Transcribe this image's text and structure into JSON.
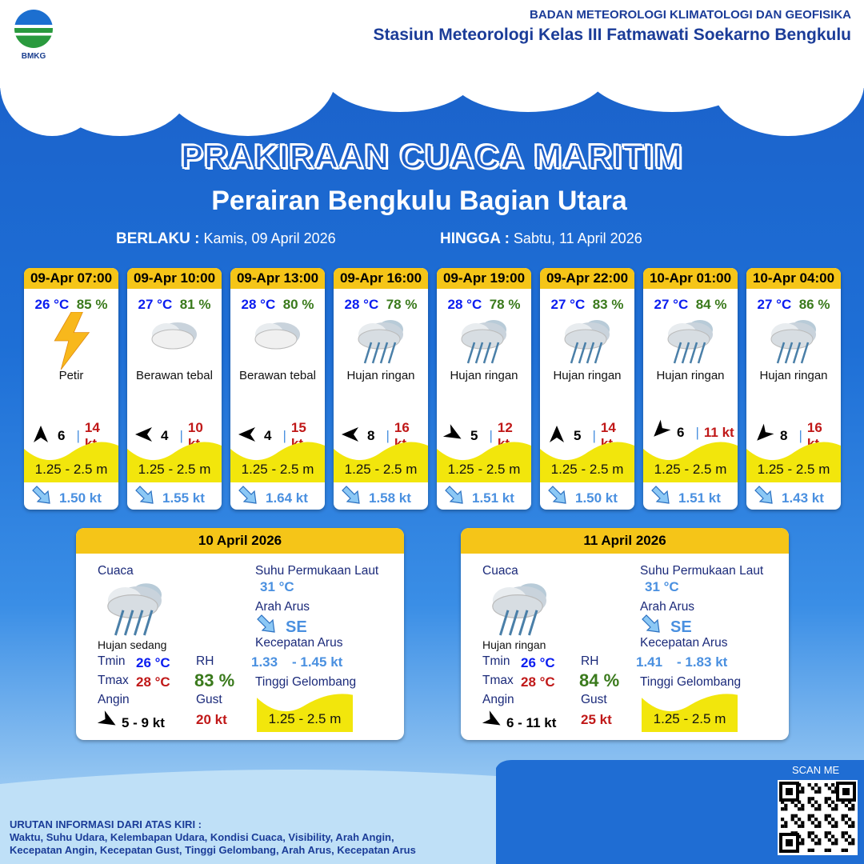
{
  "header": {
    "logo_text": "BMKG",
    "org_line1": "BADAN METEOROLOGI KLIMATOLOGI DAN GEOFISIKA",
    "org_line2": "Stasiun Meteorologi Kelas III Fatmawati Soekarno Bengkulu"
  },
  "title": "PRAKIRAAN CUACA MARITIM",
  "subtitle": "Perairan Bengkulu Bagian Utara",
  "validity": {
    "from_label": "BERLAKU :",
    "from_value": "Kamis, 09 April 2026",
    "to_label": "HINGGA :",
    "to_value": "Sabtu, 11 April 2026"
  },
  "colors": {
    "header_yellow": "#f5c518",
    "wave_yellow": "#f2e60c",
    "temp_blue": "#0a1cf0",
    "rh_green": "#3a7a1c",
    "gust_red": "#c01818",
    "current_blue": "#4a90e0"
  },
  "forecasts": [
    {
      "time": "09-Apr 07:00",
      "temp": "26 °C",
      "rh": "85 %",
      "icon": "lightning-icon",
      "condition": "Petir",
      "wind_dir_deg": 180,
      "wind_speed": "6",
      "gust": "14 kt",
      "wave": "1.25 - 2.5 m",
      "current": "1.50 kt"
    },
    {
      "time": "09-Apr 10:00",
      "temp": "27 °C",
      "rh": "81 %",
      "icon": "cloud-icon",
      "condition": "Berawan tebal",
      "wind_dir_deg": 90,
      "wind_speed": "4",
      "gust": "10 kt",
      "wave": "1.25 - 2.5 m",
      "current": "1.55 kt"
    },
    {
      "time": "09-Apr 13:00",
      "temp": "28 °C",
      "rh": "80 %",
      "icon": "cloud-icon",
      "condition": "Berawan tebal",
      "wind_dir_deg": 90,
      "wind_speed": "4",
      "gust": "15 kt",
      "wave": "1.25 - 2.5 m",
      "current": "1.64 kt"
    },
    {
      "time": "09-Apr 16:00",
      "temp": "28 °C",
      "rh": "78 %",
      "icon": "rain-cloud-icon",
      "condition": "Hujan ringan",
      "wind_dir_deg": 90,
      "wind_speed": "8",
      "gust": "16 kt",
      "wave": "1.25 - 2.5 m",
      "current": "1.58 kt"
    },
    {
      "time": "09-Apr 19:00",
      "temp": "28 °C",
      "rh": "78 %",
      "icon": "rain-cloud-icon",
      "condition": "Hujan ringan",
      "wind_dir_deg": -60,
      "wind_speed": "5",
      "gust": "12 kt",
      "wave": "1.25 - 2.5 m",
      "current": "1.51 kt"
    },
    {
      "time": "09-Apr 22:00",
      "temp": "27 °C",
      "rh": "83 %",
      "icon": "rain-cloud-icon",
      "condition": "Hujan ringan",
      "wind_dir_deg": 180,
      "wind_speed": "5",
      "gust": "14 kt",
      "wave": "1.25 - 2.5 m",
      "current": "1.50 kt"
    },
    {
      "time": "10-Apr 01:00",
      "temp": "27 °C",
      "rh": "84 %",
      "icon": "rain-cloud-icon",
      "condition": "Hujan ringan",
      "wind_dir_deg": 45,
      "wind_speed": "6",
      "gust": "11 kt",
      "wave": "1.25 - 2.5 m",
      "current": "1.51 kt"
    },
    {
      "time": "10-Apr 04:00",
      "temp": "27 °C",
      "rh": "86 %",
      "icon": "rain-cloud-icon",
      "condition": "Hujan ringan",
      "wind_dir_deg": 45,
      "wind_speed": "8",
      "gust": "16 kt",
      "wave": "1.25 - 2.5 m",
      "current": "1.43 kt"
    }
  ],
  "labels": {
    "weather": "Cuaca",
    "sst": "Suhu Permukaan Laut",
    "current_dir": "Arah Arus",
    "current_speed": "Kecepatan Arus",
    "wave_height": "Tinggi Gelombang",
    "tmin": "Tmin",
    "tmax": "Tmax",
    "rh": "RH",
    "wind": "Angin",
    "gust": "Gust"
  },
  "daily": [
    {
      "date": "10 April 2026",
      "condition": "Hujan sedang",
      "tmin": "26 °C",
      "tmax": "28 °C",
      "rh": "83 %",
      "wind": "5  - 9 kt",
      "gust": "20 kt",
      "sst": "31 °C",
      "current_dir": "SE",
      "current_min": "1.33",
      "current_max": "- 1.45 kt",
      "wave": "1.25 - 2.5 m"
    },
    {
      "date": "11 April 2026",
      "condition": "Hujan ringan",
      "tmin": "26 °C",
      "tmax": "28 °C",
      "rh": "84 %",
      "wind": "6  - 11 kt",
      "gust": "25 kt",
      "sst": "31 °C",
      "current_dir": "SE",
      "current_min": "1.41",
      "current_max": "- 1.83 kt",
      "wave": "1.25 - 2.5 m"
    }
  ],
  "footer": {
    "scan": "SCAN ME",
    "note_title": "URUTAN INFORMASI DARI ATAS KIRI :",
    "note_line1": "Waktu, Suhu Udara, Kelembapan Udara, Kondisi Cuaca, Visibility, Arah Angin,",
    "note_line2": "Kecepatan Angin, Kecepatan Gust, Tinggi Gelombang, Arah Arus, Kecepatan Arus"
  }
}
